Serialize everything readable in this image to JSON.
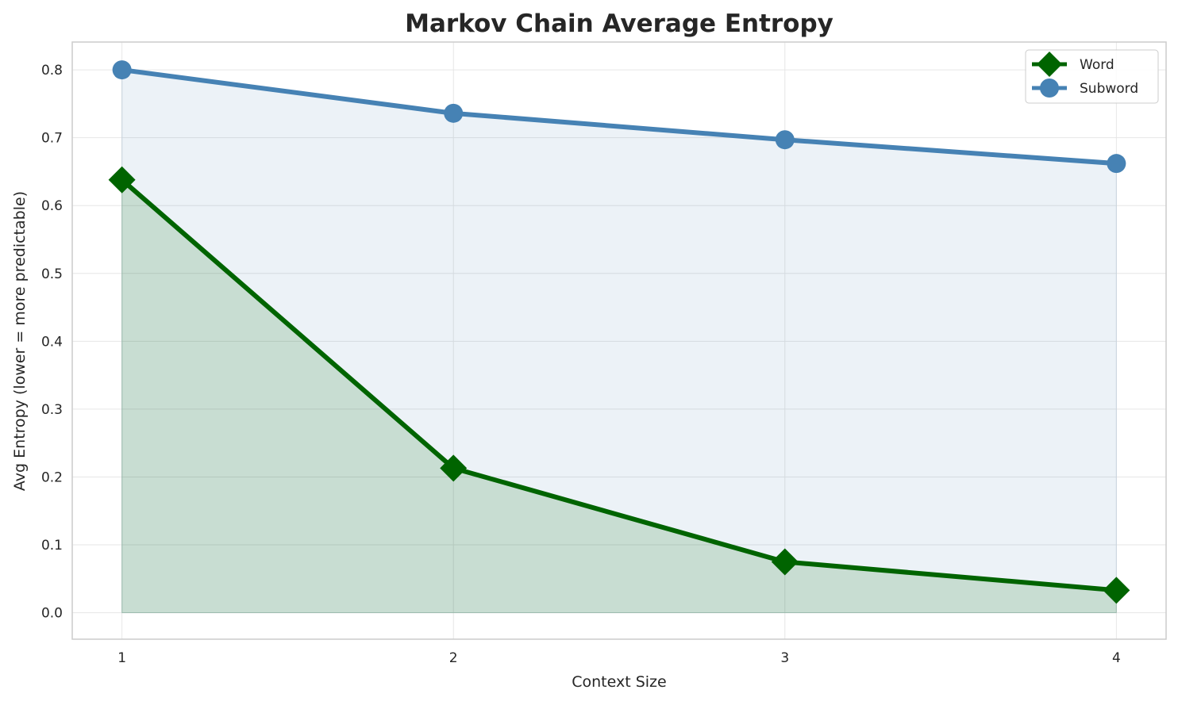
{
  "chart_data": {
    "type": "line",
    "title": "Markov Chain Average Entropy",
    "xlabel": "Context Size",
    "ylabel": "Avg Entropy (lower = more predictable)",
    "x": [
      1,
      2,
      3,
      4
    ],
    "xticks": [
      "1",
      "2",
      "3",
      "4"
    ],
    "yticks": [
      "0.0",
      "0.1",
      "0.2",
      "0.3",
      "0.4",
      "0.5",
      "0.6",
      "0.7",
      "0.8"
    ],
    "xlim": [
      0.85,
      4.15
    ],
    "ylim": [
      -0.039,
      0.841
    ],
    "grid": true,
    "legend_position": "top-right",
    "series": [
      {
        "name": "Word",
        "values": [
          0.638,
          0.213,
          0.075,
          0.033
        ],
        "color": "#006400",
        "marker": "diamond",
        "fill": true
      },
      {
        "name": "Subword",
        "values": [
          0.8,
          0.736,
          0.697,
          0.662
        ],
        "color": "#4682b4",
        "marker": "circle",
        "fill": true
      }
    ]
  }
}
